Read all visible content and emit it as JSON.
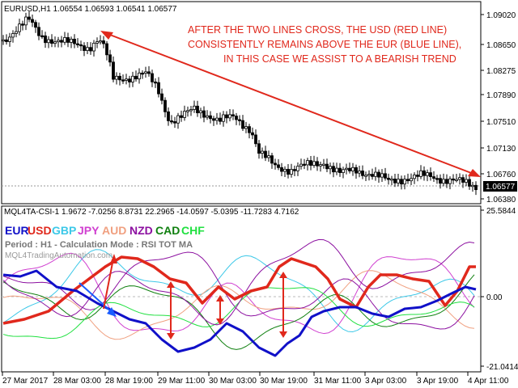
{
  "top_panel": {
    "header": "EURUSD,H1  1.06554 1.06593 1.06541 1.06577",
    "annotation_lines": [
      "AFTER THE TWO LINES CROSS, THE USD (RED LINE)",
      "CONSISTENTLY REMAINS ABOVE THE EUR (BLUE LINE),",
      "IN THIS CASE WE ASSIST TO A BEARISH TREND"
    ],
    "price_labels": [
      "1.09020",
      "1.08650",
      "1.08275",
      "1.07890",
      "1.07510",
      "1.07130",
      "1.06760",
      "1.06380"
    ],
    "current_price": "1.06577"
  },
  "bottom_panel": {
    "header": "MQL4TA-CSI-1 1.9672 -7.0256 8.8731 22.2965 -14.0597 -5.0395 -11.7283 4.7162",
    "currencies": [
      {
        "label": "EUR",
        "color": "#1010c8"
      },
      {
        "label": "USD",
        "color": "#e0281c"
      },
      {
        "label": "GBP",
        "color": "#3cc8e8"
      },
      {
        "label": "JPY",
        "color": "#d040d0"
      },
      {
        "label": "AUD",
        "color": "#f0a080"
      },
      {
        "label": "NZD",
        "color": "#8c10a0"
      },
      {
        "label": "CAD",
        "color": "#108010"
      },
      {
        "label": "CHF",
        "color": "#20e040"
      }
    ],
    "period_text": "Period : H1 - Calculation Mode : RSI TOT MA",
    "watermark": "MQL4TradingAutomation.com",
    "scale_labels": {
      "top": "25.5844",
      "mid": "0.00",
      "bottom": "-21.0414"
    }
  },
  "time_axis": [
    "27 Mar 2017",
    "28 Mar 03:00",
    "28 Mar 19:00",
    "29 Mar 11:00",
    "30 Mar 03:00",
    "30 Mar 19:00",
    "31 Mar 11:00",
    "3 Apr 03:00",
    "3 Apr 19:00",
    "4 Apr 11:00"
  ]
}
